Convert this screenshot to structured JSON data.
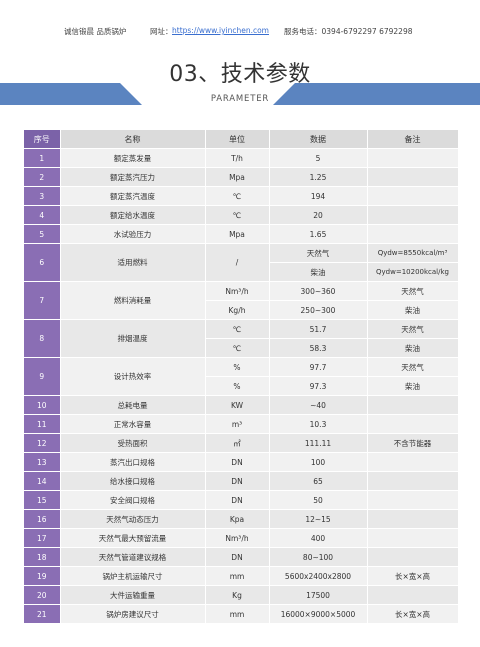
{
  "header": {
    "slogan": "诚信锻晨  品质锅炉",
    "website_label": "网址：",
    "website_url": "https://www.iyinchen.com",
    "phone": "服务电话：0394-6792297 6792298"
  },
  "title": "03、技术参数",
  "subtitle": "PARAMETER",
  "table": {
    "headers": [
      "序号",
      "名称",
      "单位",
      "数据",
      "备注"
    ],
    "rows": [
      {
        "idx": "1",
        "name": "额定蒸发量",
        "unit": "T/h",
        "value": "5",
        "note": ""
      },
      {
        "idx": "2",
        "name": "额定蒸汽压力",
        "unit": "Mpa",
        "value": "1.25",
        "note": ""
      },
      {
        "idx": "3",
        "name": "额定蒸汽温度",
        "unit": "℃",
        "value": "194",
        "note": ""
      },
      {
        "idx": "4",
        "name": "额定给水温度",
        "unit": "℃",
        "value": "20",
        "note": ""
      },
      {
        "idx": "5",
        "name": "水试验压力",
        "unit": "Mpa",
        "value": "1.65",
        "note": ""
      },
      {
        "idx": "6",
        "name": "适用燃料",
        "unit": "/",
        "value": "天然气",
        "value2": "柴油",
        "note": "Qydw=8550kcal/m³",
        "note2": "Qydw=10200kcal/kg"
      },
      {
        "idx": "7",
        "name": "燃料消耗量",
        "unit": "Nm³/h",
        "unit2": "Kg/h",
        "value": "300~360",
        "value2": "250~300",
        "note": "天然气",
        "note2": "柴油"
      },
      {
        "idx": "8",
        "name": "排烟温度",
        "unit": "℃",
        "unit2": "℃",
        "value": "51.7",
        "value2": "58.3",
        "note": "天然气",
        "note2": "柴油"
      },
      {
        "idx": "9",
        "name": "设计热效率",
        "unit": "%",
        "unit2": "%",
        "value": "97.7",
        "value2": "97.3",
        "note": "天然气",
        "note2": "柴油"
      },
      {
        "idx": "10",
        "name": "总耗电量",
        "unit": "KW",
        "value": "~40",
        "note": ""
      },
      {
        "idx": "11",
        "name": "正常水容量",
        "unit": "m³",
        "value": "10.3",
        "note": ""
      },
      {
        "idx": "12",
        "name": "受热面积",
        "unit": "㎡",
        "value": "111.11",
        "note": "不含节能器"
      },
      {
        "idx": "13",
        "name": "蒸汽出口规格",
        "unit": "DN",
        "value": "100",
        "note": ""
      },
      {
        "idx": "14",
        "name": "给水接口规格",
        "unit": "DN",
        "value": "65",
        "note": ""
      },
      {
        "idx": "15",
        "name": "安全阀口规格",
        "unit": "DN",
        "value": "50",
        "note": ""
      },
      {
        "idx": "16",
        "name": "天然气动态压力",
        "unit": "Kpa",
        "value": "12~15",
        "note": ""
      },
      {
        "idx": "17",
        "name": "天然气最大预留流量",
        "unit": "Nm³/h",
        "value": "400",
        "note": ""
      },
      {
        "idx": "18",
        "name": "天然气管道建议规格",
        "unit": "DN",
        "value": "80~100",
        "note": ""
      },
      {
        "idx": "19",
        "name": "锅炉主机运输尺寸",
        "unit": "mm",
        "value": "5600x2400x2800",
        "note": "长×宽×高"
      },
      {
        "idx": "20",
        "name": "大件运输重量",
        "unit": "Kg",
        "value": "17500",
        "note": ""
      },
      {
        "idx": "21",
        "name": "锅炉房建议尺寸",
        "unit": "mm",
        "value": "16000×9000×5000",
        "note": "长×宽×高"
      }
    ]
  },
  "colors": {
    "accent_purple": "#7b62a8",
    "band_blue": "#5b84c0",
    "cell_grey": "#f1f1f1"
  }
}
